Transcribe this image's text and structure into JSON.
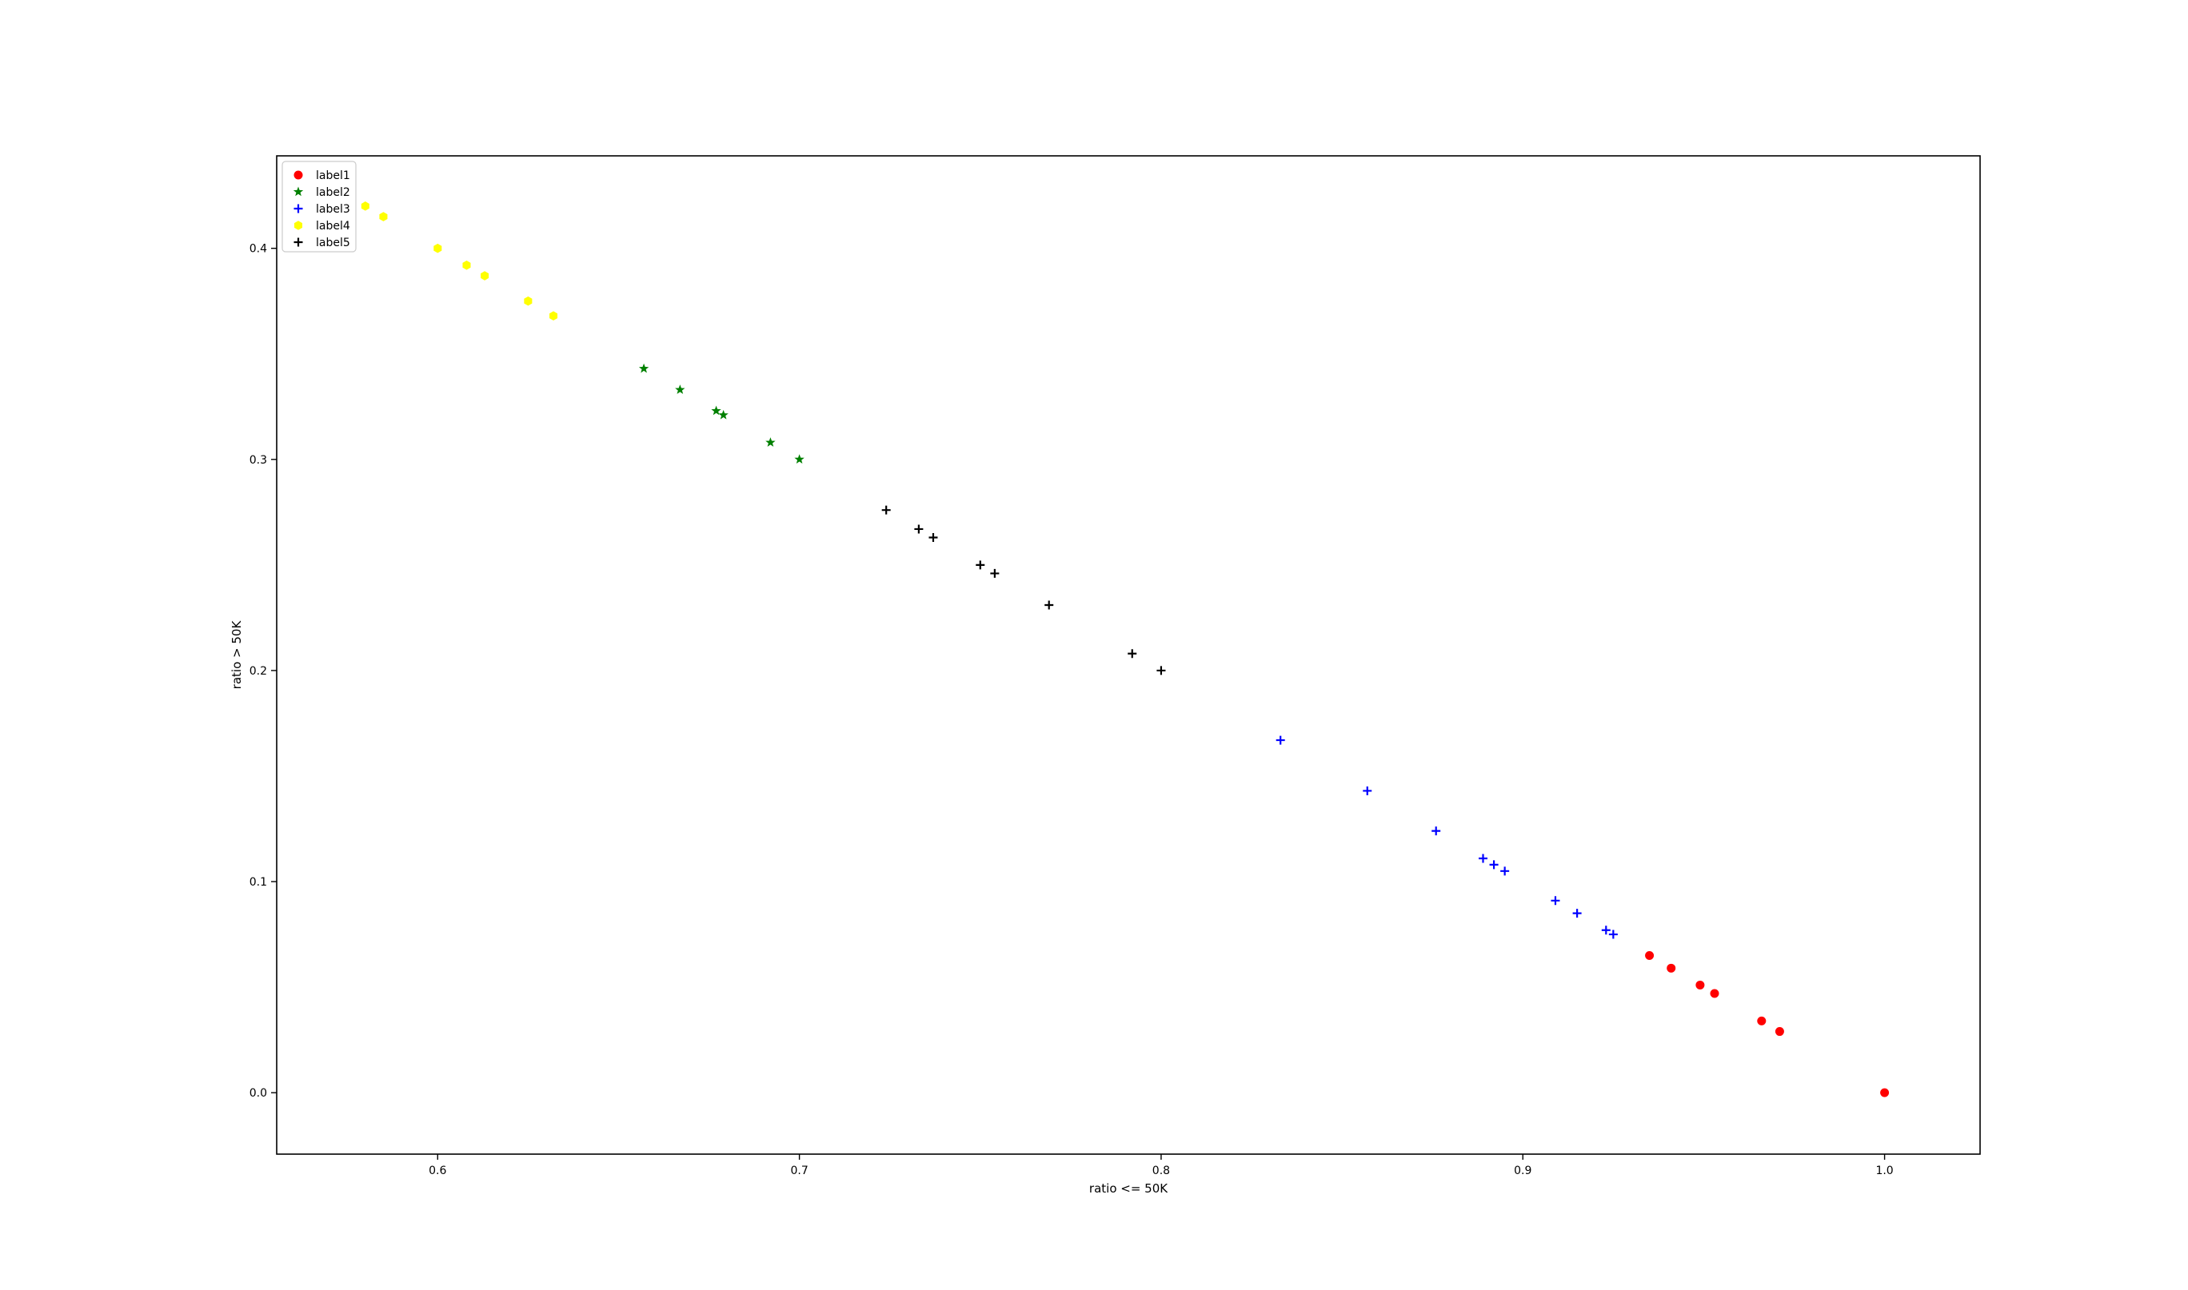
{
  "chart_data": {
    "type": "scatter",
    "title": "",
    "xlabel": "ratio <= 50K",
    "ylabel": "ratio > 50K",
    "xlim": [
      0.5555,
      1.0264
    ],
    "ylim": [
      -0.0291,
      0.4438
    ],
    "xticks": [
      0.6,
      0.7,
      0.8,
      0.9,
      1.0
    ],
    "xtick_labels": [
      "0.6",
      "0.7",
      "0.8",
      "0.9",
      "1.0"
    ],
    "yticks": [
      0.0,
      0.1,
      0.2,
      0.3,
      0.4
    ],
    "ytick_labels": [
      "0.0",
      "0.1",
      "0.2",
      "0.3",
      "0.4"
    ],
    "grid": false,
    "legend_position": "top-left",
    "series": [
      {
        "name": "label1",
        "color": "#ff0000",
        "marker": "circle",
        "points": [
          [
            0.935,
            0.065
          ],
          [
            0.941,
            0.059
          ],
          [
            0.949,
            0.051
          ],
          [
            0.953,
            0.047
          ],
          [
            0.966,
            0.034
          ],
          [
            0.971,
            0.029
          ],
          [
            1.0,
            0.0
          ]
        ]
      },
      {
        "name": "label2",
        "color": "#008000",
        "marker": "star",
        "points": [
          [
            0.657,
            0.343
          ],
          [
            0.667,
            0.333
          ],
          [
            0.677,
            0.323
          ],
          [
            0.679,
            0.321
          ],
          [
            0.692,
            0.308
          ],
          [
            0.7,
            0.3
          ]
        ]
      },
      {
        "name": "label3",
        "color": "#0000ff",
        "marker": "plus",
        "points": [
          [
            0.833,
            0.167
          ],
          [
            0.857,
            0.143
          ],
          [
            0.876,
            0.124
          ],
          [
            0.889,
            0.111
          ],
          [
            0.892,
            0.108
          ],
          [
            0.895,
            0.105
          ],
          [
            0.909,
            0.091
          ],
          [
            0.915,
            0.085
          ],
          [
            0.923,
            0.077
          ],
          [
            0.925,
            0.075
          ]
        ]
      },
      {
        "name": "label4",
        "color": "#ffff00",
        "marker": "hexagon",
        "points": [
          [
            0.58,
            0.42
          ],
          [
            0.585,
            0.415
          ],
          [
            0.6,
            0.4
          ],
          [
            0.608,
            0.392
          ],
          [
            0.613,
            0.387
          ],
          [
            0.625,
            0.375
          ],
          [
            0.632,
            0.368
          ]
        ]
      },
      {
        "name": "label5",
        "color": "#000000",
        "marker": "plus",
        "points": [
          [
            0.724,
            0.276
          ],
          [
            0.733,
            0.267
          ],
          [
            0.737,
            0.263
          ],
          [
            0.75,
            0.25
          ],
          [
            0.754,
            0.246
          ],
          [
            0.769,
            0.231
          ],
          [
            0.792,
            0.208
          ],
          [
            0.8,
            0.2
          ]
        ]
      }
    ]
  }
}
